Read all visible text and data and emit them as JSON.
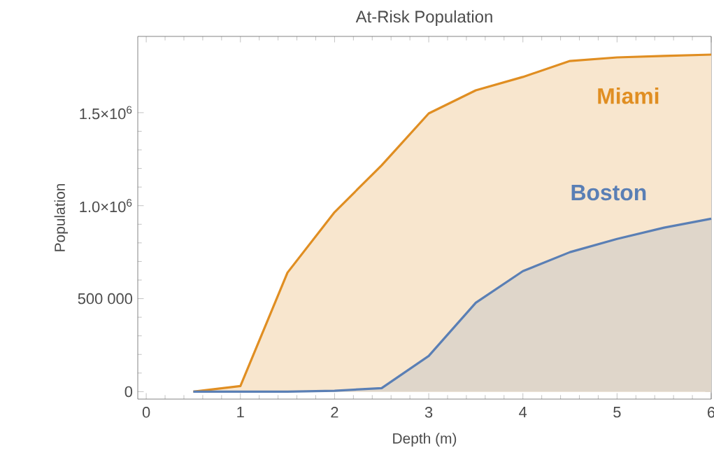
{
  "chart_data": {
    "type": "area",
    "title": "At-Risk Population",
    "xlabel": "Depth (m)",
    "ylabel": "Population",
    "x": [
      0.5,
      1,
      1.5,
      2,
      2.5,
      3,
      3.5,
      4,
      4.5,
      5,
      5.5,
      6
    ],
    "series": [
      {
        "name": "Miami",
        "color": "#e08e22",
        "values": [
          0,
          30000,
          640000,
          965000,
          1217000,
          1496000,
          1620000,
          1692000,
          1778000,
          1797000,
          1805000,
          1812000
        ]
      },
      {
        "name": "Boston",
        "color": "#5a7fb5",
        "values": [
          0,
          0,
          0,
          5000,
          19000,
          192000,
          478000,
          648000,
          750000,
          821000,
          882000,
          930000
        ]
      }
    ],
    "xlim": [
      -0.09,
      6
    ],
    "ylim": [
      -40000,
      1910000
    ],
    "xticks": [
      0,
      1,
      2,
      3,
      4,
      5,
      6
    ],
    "yticks": [
      0,
      {
        "value": 500000,
        "label": "500 000"
      },
      {
        "value": 1000000,
        "label": "1.0×10$^{6}$"
      },
      {
        "value": 1500000,
        "label": "1.5×10$^{6}$"
      }
    ],
    "grid": false,
    "legend": false
  }
}
